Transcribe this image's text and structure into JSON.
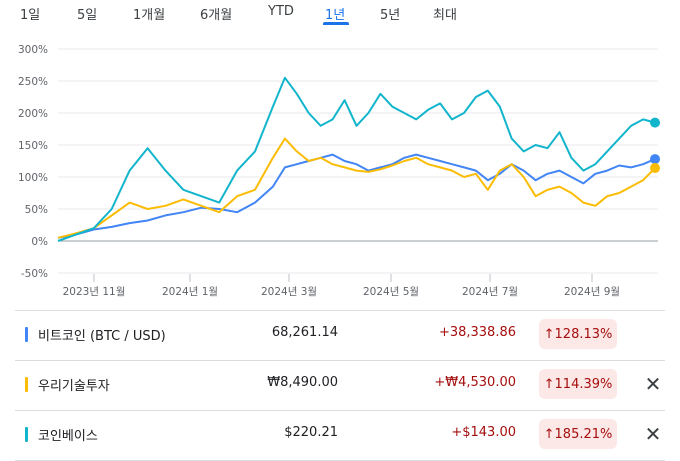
{
  "tabs": [
    {
      "label": "1일",
      "active": false
    },
    {
      "label": "5일",
      "active": false
    },
    {
      "label": "1개월",
      "active": false
    },
    {
      "label": "6개월",
      "active": false
    },
    {
      "label": "YTD",
      "active": false
    },
    {
      "label": "1년",
      "active": true
    },
    {
      "label": "5년",
      "active": false
    },
    {
      "label": "최대",
      "active": false
    }
  ],
  "chart_data": {
    "type": "line",
    "xlabel": "",
    "ylabel": "",
    "y_tick_labels": [
      "300%",
      "250%",
      "200%",
      "150%",
      "100%",
      "50%",
      "0%",
      "-50%"
    ],
    "y_ticks": [
      300,
      250,
      200,
      150,
      100,
      50,
      0,
      -50
    ],
    "ylim": [
      -50,
      300
    ],
    "x_tick_labels": [
      "2023년 11월",
      "2024년 1월",
      "2024년 3월",
      "2024년 5월",
      "2024년 7월",
      "2024년 9월"
    ],
    "x_ticks": [
      0.06,
      0.22,
      0.385,
      0.555,
      0.72,
      0.89
    ],
    "legend": "none",
    "grid": true,
    "series": [
      {
        "name": "비트코인 (BTC / USD)",
        "color": "#4285f4",
        "x": [
          0,
          0.03,
          0.06,
          0.09,
          0.12,
          0.15,
          0.18,
          0.21,
          0.24,
          0.27,
          0.3,
          0.33,
          0.36,
          0.38,
          0.4,
          0.42,
          0.44,
          0.46,
          0.48,
          0.5,
          0.52,
          0.54,
          0.56,
          0.58,
          0.6,
          0.62,
          0.64,
          0.66,
          0.68,
          0.7,
          0.72,
          0.74,
          0.76,
          0.78,
          0.8,
          0.82,
          0.84,
          0.86,
          0.88,
          0.9,
          0.92,
          0.94,
          0.96,
          0.98,
          1.0
        ],
        "y": [
          5,
          10,
          18,
          22,
          28,
          32,
          40,
          45,
          52,
          50,
          45,
          60,
          85,
          115,
          120,
          125,
          130,
          135,
          125,
          120,
          110,
          115,
          120,
          130,
          135,
          130,
          125,
          120,
          115,
          110,
          95,
          105,
          120,
          110,
          95,
          105,
          110,
          100,
          90,
          105,
          110,
          118,
          115,
          120,
          128
        ]
      },
      {
        "name": "우리기술투자",
        "color": "#fbbc04",
        "x": [
          0,
          0.03,
          0.06,
          0.09,
          0.12,
          0.15,
          0.18,
          0.21,
          0.24,
          0.27,
          0.3,
          0.33,
          0.36,
          0.38,
          0.4,
          0.42,
          0.44,
          0.46,
          0.48,
          0.5,
          0.52,
          0.54,
          0.56,
          0.58,
          0.6,
          0.62,
          0.64,
          0.66,
          0.68,
          0.7,
          0.72,
          0.74,
          0.76,
          0.78,
          0.8,
          0.82,
          0.84,
          0.86,
          0.88,
          0.9,
          0.92,
          0.94,
          0.96,
          0.98,
          1.0
        ],
        "y": [
          5,
          12,
          20,
          40,
          60,
          50,
          55,
          65,
          55,
          45,
          70,
          80,
          130,
          160,
          140,
          125,
          130,
          120,
          115,
          110,
          108,
          112,
          118,
          125,
          130,
          120,
          115,
          110,
          100,
          105,
          80,
          110,
          120,
          100,
          70,
          80,
          85,
          75,
          60,
          55,
          70,
          75,
          85,
          95,
          114
        ]
      },
      {
        "name": "코인베이스",
        "color": "#12b5cb",
        "x": [
          0,
          0.03,
          0.06,
          0.09,
          0.12,
          0.15,
          0.18,
          0.21,
          0.24,
          0.27,
          0.3,
          0.33,
          0.36,
          0.38,
          0.4,
          0.42,
          0.44,
          0.46,
          0.48,
          0.5,
          0.52,
          0.54,
          0.56,
          0.58,
          0.6,
          0.62,
          0.64,
          0.66,
          0.68,
          0.7,
          0.72,
          0.74,
          0.76,
          0.78,
          0.8,
          0.82,
          0.84,
          0.86,
          0.88,
          0.9,
          0.92,
          0.94,
          0.96,
          0.98,
          1.0
        ],
        "y": [
          0,
          10,
          20,
          50,
          110,
          145,
          110,
          80,
          70,
          60,
          110,
          140,
          210,
          255,
          230,
          200,
          180,
          190,
          220,
          180,
          200,
          230,
          210,
          200,
          190,
          205,
          215,
          190,
          200,
          225,
          235,
          210,
          160,
          140,
          150,
          145,
          170,
          130,
          110,
          120,
          140,
          160,
          180,
          190,
          185
        ]
      }
    ]
  },
  "rows": [
    {
      "name": "비트코인 (BTC / USD)",
      "color": "#4285f4",
      "price": "68,261.14",
      "change": "+38,338.86",
      "percent": "128.13%",
      "arrow": "↑"
    },
    {
      "name": "우리기술투자",
      "color": "#fbbc04",
      "price": "₩8,490.00",
      "change": "+₩4,530.00",
      "percent": "114.39%",
      "arrow": "↑"
    },
    {
      "name": "코인베이스",
      "color": "#12b5cb",
      "price": "$220.21",
      "change": "+$143.00",
      "percent": "185.21%",
      "arrow": "↑"
    }
  ]
}
